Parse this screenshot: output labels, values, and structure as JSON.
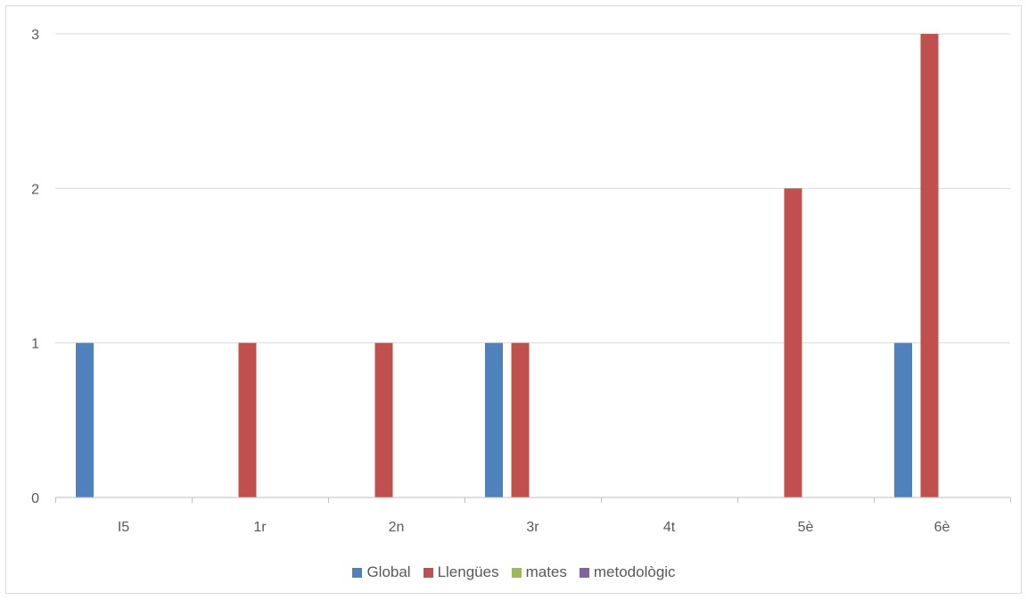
{
  "chart_data": {
    "type": "bar",
    "title": "",
    "xlabel": "",
    "ylabel": "",
    "categories": [
      "I5",
      "1r",
      "2n",
      "3r",
      "4t",
      "5è",
      "6è"
    ],
    "ylim": [
      0,
      3
    ],
    "yticks": [
      "0",
      "1",
      "2",
      "3"
    ],
    "grid": true,
    "legend_position": "bottom",
    "series": [
      {
        "name": "Global",
        "color": "#4f81bd",
        "values": [
          1,
          0,
          0,
          1,
          0,
          0,
          1
        ]
      },
      {
        "name": "Llengües",
        "color": "#c0504d",
        "values": [
          0,
          1,
          1,
          1,
          0,
          2,
          3
        ]
      },
      {
        "name": "mates",
        "color": "#9bbb59",
        "values": [
          0,
          0,
          0,
          0,
          0,
          0,
          0
        ]
      },
      {
        "name": "metodològic",
        "color": "#8064a2",
        "values": [
          0,
          0,
          0,
          0,
          0,
          0,
          0
        ]
      }
    ]
  }
}
